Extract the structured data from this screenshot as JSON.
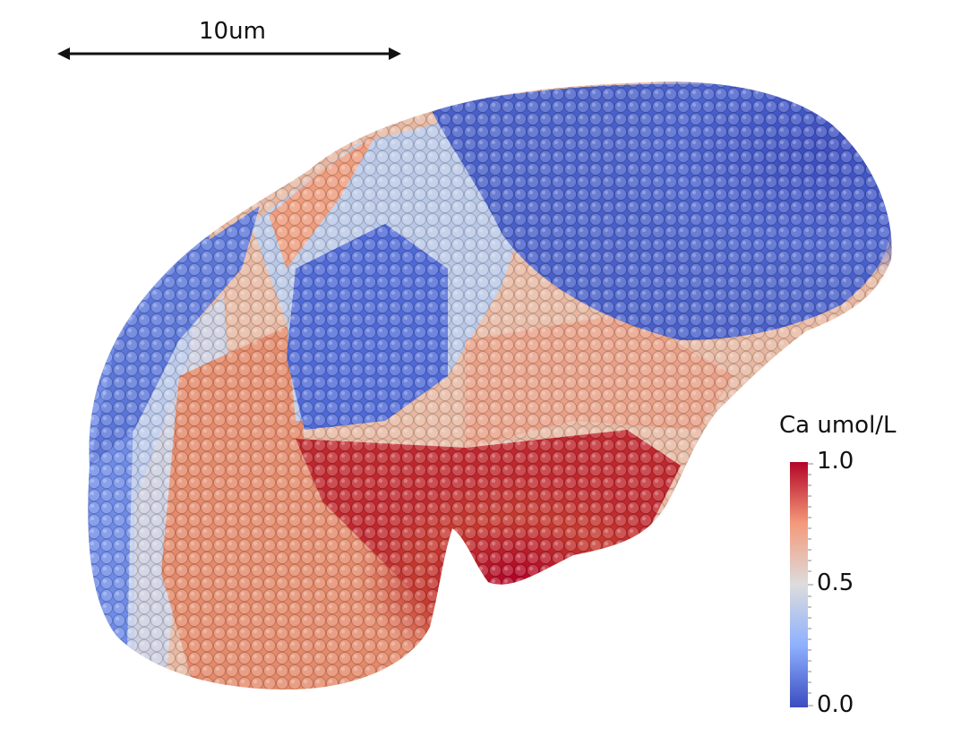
{
  "scale_bar": {
    "label": "10um"
  },
  "legend": {
    "title": "Ca umol/L",
    "ticks": [
      "1.0",
      "0.5",
      "0.0"
    ],
    "range": [
      0.0,
      1.0
    ],
    "colormap": [
      "#3b4cc0",
      "#8db0fe",
      "#dddcdc",
      "#f49a7b",
      "#b40426"
    ]
  },
  "image": {
    "subject": "sphere-packed cell surface colored by calcium concentration",
    "colors": {
      "low": "#3b4cc0",
      "mid": "#dddcdc",
      "high": "#b40426"
    }
  }
}
